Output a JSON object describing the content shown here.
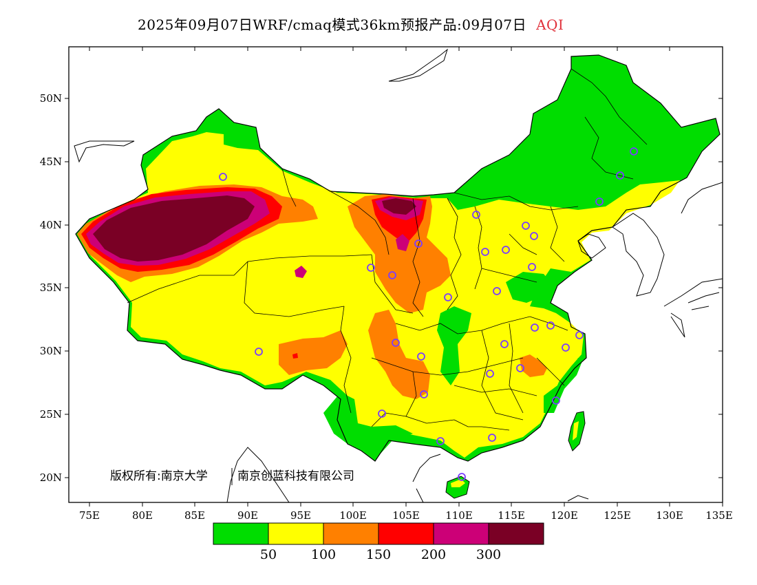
{
  "title": {
    "main": "2025年09月07日WRF/cmaq模式36km预报产品:09月07日",
    "variable": "AQI"
  },
  "map": {
    "y_ticks": [
      "50N",
      "45N",
      "40N",
      "35N",
      "30N",
      "25N",
      "20N"
    ],
    "x_ticks": [
      "75E",
      "80E",
      "85E",
      "90E",
      "95E",
      "100E",
      "105E",
      "110E",
      "115E",
      "120E",
      "125E",
      "130E",
      "135E"
    ],
    "copyright_left": "版权所有:南京大学",
    "copyright_right": "南京创蓝科技有限公司",
    "colors": {
      "good": "#00dd00",
      "moderate": "#ffff00",
      "usg": "#ff8000",
      "unhealthy": "#ff0000",
      "very_unhealthy": "#cc0077",
      "hazardous": "#7a0025",
      "city_marker": "#7a3cff"
    }
  },
  "legend": {
    "colors": [
      "#00dd00",
      "#ffff00",
      "#ff8000",
      "#ff0000",
      "#cc0077",
      "#7a0025"
    ],
    "labels": [
      "50",
      "100",
      "150",
      "200",
      "300"
    ]
  }
}
